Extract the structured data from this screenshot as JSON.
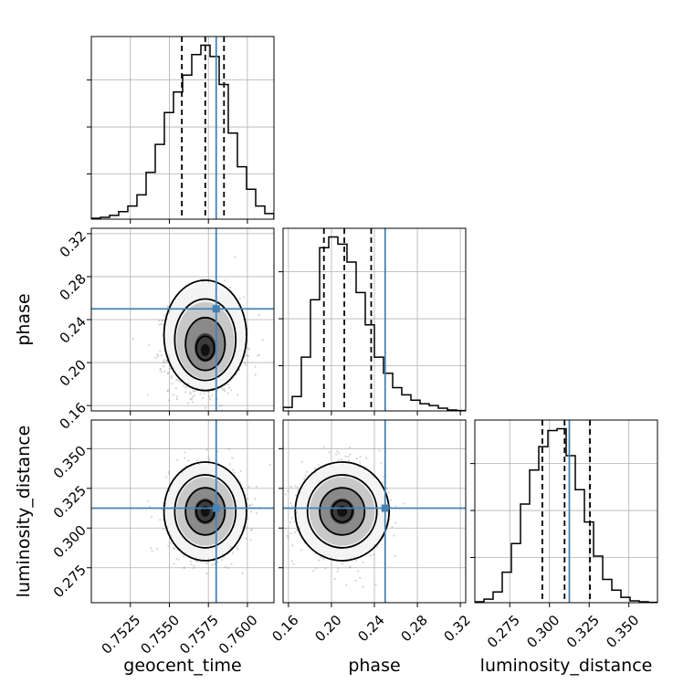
{
  "chart_data": {
    "type": "corner",
    "parameters": [
      "geocent_time",
      "phase",
      "luminosity_distance"
    ],
    "axis_labels": {
      "geocent_time": "geocent_time",
      "phase": "phase",
      "luminosity_distance": "luminosity_distance"
    },
    "ranges": {
      "geocent_time": [
        0.75,
        0.7617
      ],
      "phase": [
        0.155,
        0.325
      ],
      "luminosity_distance": [
        0.253,
        0.368
      ]
    },
    "ticks": {
      "geocent_time": [
        0.7525,
        0.755,
        0.7575,
        0.76
      ],
      "phase": [
        0.16,
        0.2,
        0.24,
        0.28,
        0.32
      ],
      "luminosity_distance": [
        0.275,
        0.3,
        0.325,
        0.35
      ]
    },
    "tick_labels": {
      "geocent_time": [
        "0.7525",
        "0.7550",
        "0.7575",
        "0.7600"
      ],
      "phase": [
        "0.16",
        "0.20",
        "0.24",
        "0.28",
        "0.32"
      ],
      "luminosity_distance": [
        "0.275",
        "0.300",
        "0.325",
        "0.350"
      ]
    },
    "truths": {
      "geocent_time": 0.758,
      "phase": 0.25,
      "luminosity_distance": 0.3125
    },
    "quantiles": {
      "geocent_time": [
        0.7558,
        0.7573,
        0.7585
      ],
      "phase": [
        0.193,
        0.212,
        0.237
      ],
      "luminosity_distance": [
        0.2955,
        0.3095,
        0.3255
      ]
    },
    "histograms": {
      "geocent_time": [
        0.005,
        0.01,
        0.02,
        0.04,
        0.07,
        0.13,
        0.25,
        0.4,
        0.57,
        0.68,
        0.77,
        0.88,
        0.93,
        0.87,
        0.72,
        0.46,
        0.28,
        0.16,
        0.07,
        0.03
      ],
      "phase": [
        0.02,
        0.08,
        0.3,
        0.62,
        0.91,
        0.97,
        0.93,
        0.83,
        0.66,
        0.48,
        0.3,
        0.21,
        0.13,
        0.09,
        0.06,
        0.04,
        0.03,
        0.015,
        0.005,
        0.002
      ],
      "luminosity_distance": [
        0.005,
        0.02,
        0.06,
        0.17,
        0.33,
        0.55,
        0.74,
        0.87,
        0.96,
        0.97,
        0.82,
        0.63,
        0.45,
        0.26,
        0.13,
        0.07,
        0.03,
        0.01,
        0.005,
        0.002
      ]
    },
    "posterior_center": {
      "geocent_time": 0.7573,
      "phase": 0.21,
      "luminosity_distance": 0.3105
    },
    "posterior_sigma": {
      "geocent_time": 0.00115,
      "phase": 0.019,
      "luminosity_distance": 0.0135
    },
    "grid": true,
    "colors": {
      "histogram": "#000000",
      "quantile": "#000000",
      "truth": "#4682b4",
      "samples": "#888888"
    }
  }
}
